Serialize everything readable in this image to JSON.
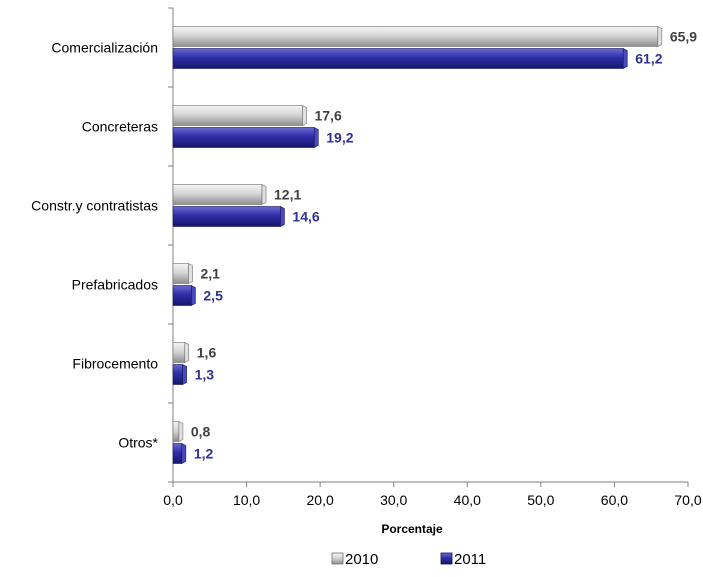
{
  "chart_data": {
    "type": "bar",
    "orientation": "horizontal",
    "categories": [
      "Comercialización",
      "Concreteras",
      "Constr.y contratistas",
      "Prefabricados",
      "Fibrocemento",
      "Otros*"
    ],
    "series": [
      {
        "name": "2010",
        "values": [
          65.9,
          17.6,
          12.1,
          2.1,
          1.6,
          0.8
        ],
        "labels": [
          "65,9",
          "17,6",
          "12,1",
          "2,1",
          "1,6",
          "0,8"
        ],
        "color": "#bdbdbd",
        "label_color": "#404040"
      },
      {
        "name": "2011",
        "values": [
          61.2,
          19.2,
          14.6,
          2.5,
          1.3,
          1.2
        ],
        "labels": [
          "61,2",
          "19,2",
          "14,6",
          "2,5",
          "1,3",
          "1,2"
        ],
        "color": "#2b2b9a",
        "label_color": "#2e3192"
      }
    ],
    "xlabel": "Porcentaje",
    "xlim": [
      0,
      70
    ],
    "xticks": [
      0,
      10,
      20,
      30,
      40,
      50,
      60,
      70
    ],
    "xtick_labels": [
      "0,0",
      "10,0",
      "20,0",
      "30,0",
      "40,0",
      "50,0",
      "60,0",
      "70,0"
    ],
    "grid": false,
    "legend_position": "bottom-center"
  }
}
